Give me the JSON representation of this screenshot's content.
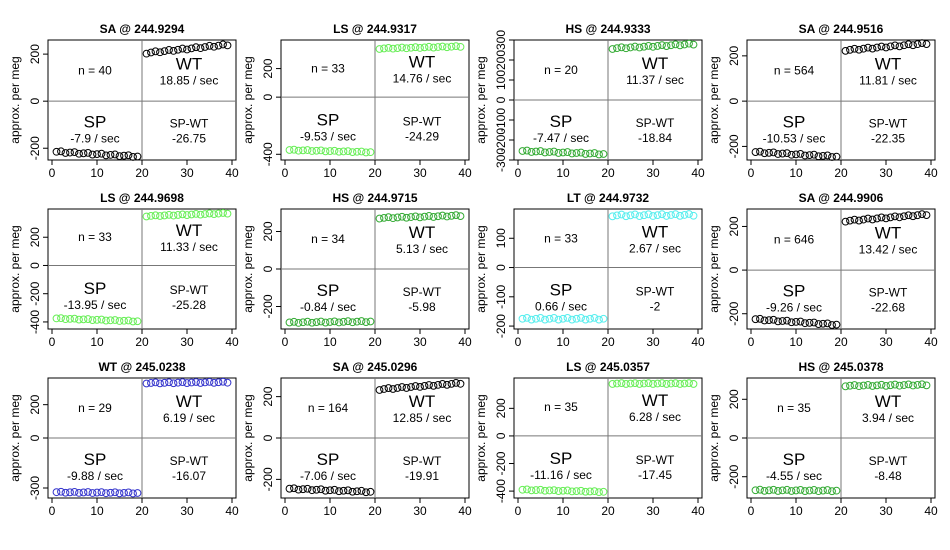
{
  "chart_data": [
    {
      "type": "scatter",
      "title": "SA @ 244.9294",
      "ylabel": "approx. per meg",
      "xlim": [
        0,
        40
      ],
      "ylim": [
        -250,
        260
      ],
      "yticks": [
        -200,
        0,
        200
      ],
      "xticks": [
        0,
        10,
        20,
        30,
        40
      ],
      "color": "#000000",
      "series_sp": {
        "start": -215,
        "end": -235
      },
      "series_wt": {
        "start": 205,
        "end": 240
      },
      "annotations": {
        "n": "n = 40",
        "wt_label": "WT",
        "wt_rate": "18.85 / sec",
        "sp_label": "SP",
        "sp_rate": "-7.9 / sec",
        "spwt_label": "SP-WT",
        "spwt_value": "-26.75"
      }
    },
    {
      "type": "scatter",
      "title": "LS @ 244.9317",
      "ylabel": "approx. per meg",
      "xlim": [
        0,
        40
      ],
      "ylim": [
        -440,
        400
      ],
      "yticks": [
        -400,
        0,
        200
      ],
      "xticks": [
        0,
        10,
        20,
        30,
        40
      ],
      "color": "#66ee55",
      "series_sp": {
        "start": -370,
        "end": -385
      },
      "series_wt": {
        "start": 340,
        "end": 355
      },
      "annotations": {
        "n": "n = 33",
        "wt_label": "WT",
        "wt_rate": "14.76 / sec",
        "sp_label": "SP",
        "sp_rate": "-9.53 / sec",
        "spwt_label": "SP-WT",
        "spwt_value": "-24.29"
      }
    },
    {
      "type": "scatter",
      "title": "HS @ 244.9333",
      "ylabel": "approx. per meg",
      "xlim": [
        0,
        40
      ],
      "ylim": [
        -300,
        300
      ],
      "yticks": [
        -300,
        -200,
        -100,
        0,
        100,
        200,
        300
      ],
      "xticks": [
        0,
        10,
        20,
        30,
        40
      ],
      "color": "#33aa33",
      "series_sp": {
        "start": -255,
        "end": -270
      },
      "series_wt": {
        "start": 258,
        "end": 280
      },
      "annotations": {
        "n": "n = 20",
        "wt_label": "WT",
        "wt_rate": "11.37 / sec",
        "sp_label": "SP",
        "sp_rate": "-7.47 / sec",
        "spwt_label": "SP-WT",
        "spwt_value": "-18.84"
      }
    },
    {
      "type": "scatter",
      "title": "SA @ 244.9516",
      "ylabel": "approx. per meg",
      "xlim": [
        0,
        40
      ],
      "ylim": [
        -260,
        270
      ],
      "yticks": [
        -200,
        0,
        200
      ],
      "xticks": [
        0,
        10,
        20,
        30,
        40
      ],
      "color": "#000000",
      "series_sp": {
        "start": -225,
        "end": -245
      },
      "series_wt": {
        "start": 225,
        "end": 255
      },
      "annotations": {
        "n": "n = 564",
        "wt_label": "WT",
        "wt_rate": "11.81 / sec",
        "sp_label": "SP",
        "sp_rate": "-10.53 / sec",
        "spwt_label": "SP-WT",
        "spwt_value": "-22.35"
      }
    },
    {
      "type": "scatter",
      "title": "LS @ 244.9698",
      "ylabel": "approx. per meg",
      "xlim": [
        0,
        40
      ],
      "ylim": [
        -450,
        400
      ],
      "yticks": [
        -400,
        -200,
        0,
        200
      ],
      "xticks": [
        0,
        10,
        20,
        30,
        40
      ],
      "color": "#66ee55",
      "series_sp": {
        "start": -375,
        "end": -395
      },
      "series_wt": {
        "start": 350,
        "end": 370
      },
      "annotations": {
        "n": "n = 33",
        "wt_label": "WT",
        "wt_rate": "11.33 / sec",
        "sp_label": "SP",
        "sp_rate": "-13.95 / sec",
        "spwt_label": "SP-WT",
        "spwt_value": "-25.28"
      }
    },
    {
      "type": "scatter",
      "title": "HS @ 244.9715",
      "ylabel": "approx. per meg",
      "xlim": [
        0,
        40
      ],
      "ylim": [
        -320,
        320
      ],
      "yticks": [
        -200,
        0,
        200
      ],
      "xticks": [
        0,
        10,
        20,
        30,
        40
      ],
      "color": "#33aa33",
      "series_sp": {
        "start": -285,
        "end": -280
      },
      "series_wt": {
        "start": 272,
        "end": 285
      },
      "annotations": {
        "n": "n = 34",
        "wt_label": "WT",
        "wt_rate": "5.13 / sec",
        "sp_label": "SP",
        "sp_rate": "-0.84 / sec",
        "spwt_label": "SP-WT",
        "spwt_value": "-5.98"
      }
    },
    {
      "type": "scatter",
      "title": "LT @ 244.9732",
      "ylabel": "approx. per meg",
      "xlim": [
        0,
        40
      ],
      "ylim": [
        -210,
        200
      ],
      "yticks": [
        -200,
        -100,
        0,
        100
      ],
      "xticks": [
        0,
        10,
        20,
        30,
        40
      ],
      "color": "#55eeee",
      "series_sp": {
        "start": -175,
        "end": -175
      },
      "series_wt": {
        "start": 178,
        "end": 180
      },
      "annotations": {
        "n": "n = 33",
        "wt_label": "WT",
        "wt_rate": "2.67 / sec",
        "sp_label": "SP",
        "sp_rate": "0.66 / sec",
        "spwt_label": "SP-WT",
        "spwt_value": "-2"
      }
    },
    {
      "type": "scatter",
      "title": "SA @ 244.9906",
      "ylabel": "approx. per meg",
      "xlim": [
        0,
        40
      ],
      "ylim": [
        -270,
        280
      ],
      "yticks": [
        -200,
        0,
        200
      ],
      "xticks": [
        0,
        10,
        20,
        30,
        40
      ],
      "color": "#000000",
      "series_sp": {
        "start": -225,
        "end": -250
      },
      "series_wt": {
        "start": 225,
        "end": 255
      },
      "annotations": {
        "n": "n = 646",
        "wt_label": "WT",
        "wt_rate": "13.42 / sec",
        "sp_label": "SP",
        "sp_rate": "-9.26 / sec",
        "spwt_label": "SP-WT",
        "spwt_value": "-22.68"
      }
    },
    {
      "type": "scatter",
      "title": "WT @ 245.0238",
      "ylabel": "approx. per meg",
      "xlim": [
        0,
        40
      ],
      "ylim": [
        -360,
        360
      ],
      "yticks": [
        -300,
        0,
        200
      ],
      "xticks": [
        0,
        10,
        20,
        30,
        40
      ],
      "color": "#3333cc",
      "series_sp": {
        "start": -325,
        "end": -330
      },
      "series_wt": {
        "start": 330,
        "end": 335
      },
      "annotations": {
        "n": "n = 29",
        "wt_label": "WT",
        "wt_rate": "6.19 / sec",
        "sp_label": "SP",
        "sp_rate": "-9.88 / sec",
        "spwt_label": "SP-WT",
        "spwt_value": "-16.07"
      }
    },
    {
      "type": "scatter",
      "title": "SA @ 245.0296",
      "ylabel": "approx. per meg",
      "xlim": [
        0,
        40
      ],
      "ylim": [
        -290,
        290
      ],
      "yticks": [
        -200,
        0,
        200
      ],
      "xticks": [
        0,
        10,
        20,
        30,
        40
      ],
      "color": "#000000",
      "series_sp": {
        "start": -245,
        "end": -260
      },
      "series_wt": {
        "start": 235,
        "end": 265
      },
      "annotations": {
        "n": "n = 164",
        "wt_label": "WT",
        "wt_rate": "12.85 / sec",
        "sp_label": "SP",
        "sp_rate": "-7.06 / sec",
        "spwt_label": "SP-WT",
        "spwt_value": "-19.91"
      }
    },
    {
      "type": "scatter",
      "title": "LS @ 245.0357",
      "ylabel": "approx. per meg",
      "xlim": [
        0,
        40
      ],
      "ylim": [
        -450,
        420
      ],
      "yticks": [
        -400,
        -200,
        0,
        200
      ],
      "xticks": [
        0,
        10,
        20,
        30,
        40
      ],
      "color": "#66ee55",
      "series_sp": {
        "start": -390,
        "end": -405
      },
      "series_wt": {
        "start": 380,
        "end": 380
      },
      "annotations": {
        "n": "n = 35",
        "wt_label": "WT",
        "wt_rate": "6.28 / sec",
        "sp_label": "SP",
        "sp_rate": "-11.16 / sec",
        "spwt_label": "SP-WT",
        "spwt_value": "-17.45"
      }
    },
    {
      "type": "scatter",
      "title": "HS @ 245.0378",
      "ylabel": "approx. per meg",
      "xlim": [
        0,
        40
      ],
      "ylim": [
        -310,
        310
      ],
      "yticks": [
        -200,
        0,
        200
      ],
      "xticks": [
        0,
        10,
        20,
        30,
        40
      ],
      "color": "#33aa33",
      "series_sp": {
        "start": -270,
        "end": -272
      },
      "series_wt": {
        "start": 270,
        "end": 275
      },
      "annotations": {
        "n": "n = 35",
        "wt_label": "WT",
        "wt_rate": "3.94 / sec",
        "sp_label": "SP",
        "sp_rate": "-4.55 / sec",
        "spwt_label": "SP-WT",
        "spwt_value": "-8.48"
      }
    }
  ]
}
